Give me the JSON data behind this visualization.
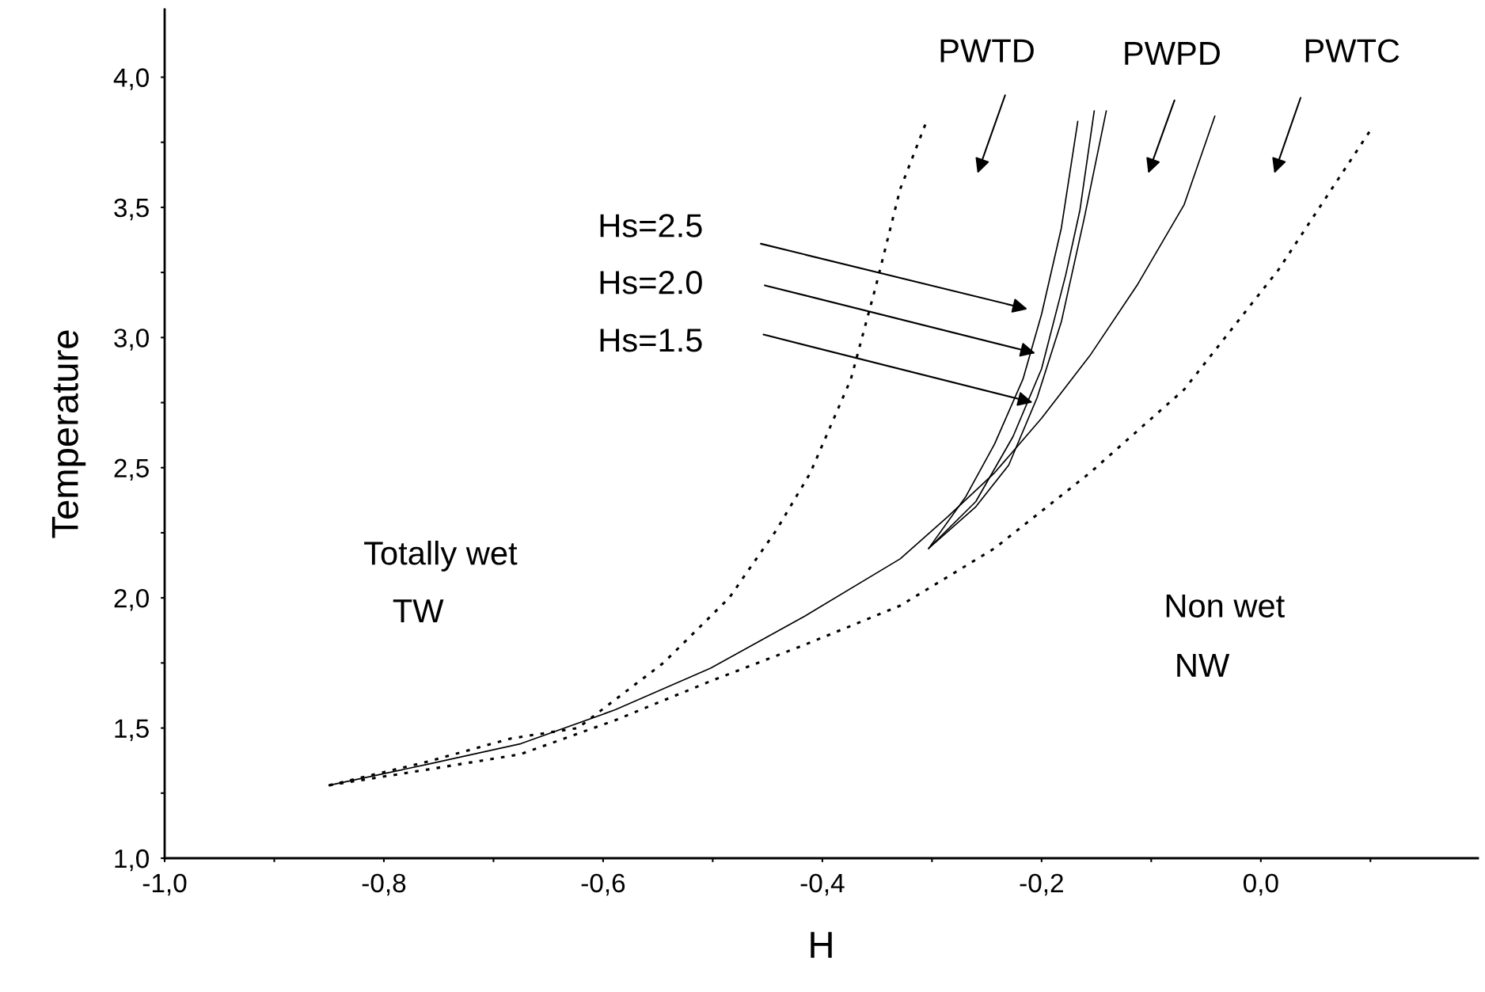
{
  "chart_data": {
    "type": "line",
    "xlabel": "H",
    "ylabel": "Temperature",
    "xlim": [
      -1.0,
      0.198
    ],
    "ylim": [
      1.0,
      4.26
    ],
    "xticks": [
      {
        "value": -1.0,
        "label": "-1,0"
      },
      {
        "value": -0.9,
        "label": null
      },
      {
        "value": -0.8,
        "label": "-0,8"
      },
      {
        "value": -0.7,
        "label": null
      },
      {
        "value": -0.6,
        "label": "-0,6"
      },
      {
        "value": -0.5,
        "label": null
      },
      {
        "value": -0.4,
        "label": "-0,4"
      },
      {
        "value": -0.3,
        "label": null
      },
      {
        "value": -0.2,
        "label": "-0,2"
      },
      {
        "value": -0.1,
        "label": null
      },
      {
        "value": 0.0,
        "label": "0,0"
      },
      {
        "value": 0.1,
        "label": null
      }
    ],
    "yticks": [
      {
        "value": 1.0,
        "label": "1,0"
      },
      {
        "value": 1.25,
        "label": null
      },
      {
        "value": 1.5,
        "label": "1,5"
      },
      {
        "value": 1.75,
        "label": null
      },
      {
        "value": 2.0,
        "label": "2,0"
      },
      {
        "value": 2.25,
        "label": null
      },
      {
        "value": 2.5,
        "label": "2,5"
      },
      {
        "value": 2.75,
        "label": null
      },
      {
        "value": 3.0,
        "label": "3,0"
      },
      {
        "value": 3.25,
        "label": null
      },
      {
        "value": 3.5,
        "label": "3,5"
      },
      {
        "value": 3.75,
        "label": null
      },
      {
        "value": 4.0,
        "label": "4,0"
      }
    ],
    "grid": false,
    "legend": false,
    "marker": "none",
    "series": [
      {
        "color": "#000000",
        "line_style": "dotted",
        "x": [
          -0.85,
          -0.761,
          -0.684,
          -0.623,
          -0.545,
          -0.485,
          -0.442,
          -0.411,
          -0.374,
          -0.351,
          -0.329,
          -0.305
        ],
        "values": [
          1.28,
          1.37,
          1.46,
          1.5,
          1.75,
          2.0,
          2.26,
          2.48,
          2.84,
          3.2,
          3.57,
          3.83
        ]
      },
      {
        "color": "#000000",
        "line_style": "dotted",
        "x": [
          -0.85,
          -0.761,
          -0.675,
          -0.589,
          -0.502,
          -0.416,
          -0.329,
          -0.243,
          -0.156,
          -0.07,
          0.016,
          0.099
        ],
        "values": [
          1.28,
          1.34,
          1.4,
          1.53,
          1.68,
          1.82,
          1.97,
          2.19,
          2.48,
          2.8,
          3.26,
          3.79
        ]
      },
      {
        "color": "#000000",
        "line_style": "solid",
        "x": [
          -0.85,
          -0.761,
          -0.675,
          -0.589,
          -0.502,
          -0.416,
          -0.329,
          -0.286,
          -0.243,
          -0.2,
          -0.156,
          -0.113,
          -0.07,
          -0.042
        ],
        "values": [
          1.28,
          1.36,
          1.44,
          1.57,
          1.73,
          1.93,
          2.15,
          2.31,
          2.48,
          2.69,
          2.93,
          3.2,
          3.51,
          3.85
        ]
      },
      {
        "color": "#000000",
        "line_style": "solid",
        "x": [
          -0.303,
          -0.269,
          -0.243,
          -0.217,
          -0.2,
          -0.182,
          -0.167
        ],
        "values": [
          2.19,
          2.39,
          2.59,
          2.84,
          3.09,
          3.42,
          3.83
        ]
      },
      {
        "color": "#000000",
        "line_style": "solid",
        "x": [
          -0.303,
          -0.26,
          -0.226,
          -0.2,
          -0.178,
          -0.165,
          -0.152
        ],
        "values": [
          2.19,
          2.37,
          2.62,
          2.88,
          3.24,
          3.49,
          3.87
        ]
      },
      {
        "color": "#000000",
        "line_style": "solid",
        "x": [
          -0.303,
          -0.26,
          -0.23,
          -0.204,
          -0.182,
          -0.161,
          -0.141
        ],
        "values": [
          2.19,
          2.35,
          2.51,
          2.77,
          3.06,
          3.46,
          3.87
        ]
      }
    ],
    "annotations": [
      "PWTD",
      "PWPD",
      "PWTC",
      "Hs=2.5",
      "Hs=2.0",
      "Hs=1.5",
      "Totally wet",
      "TW",
      "Non wet",
      "NW"
    ]
  }
}
